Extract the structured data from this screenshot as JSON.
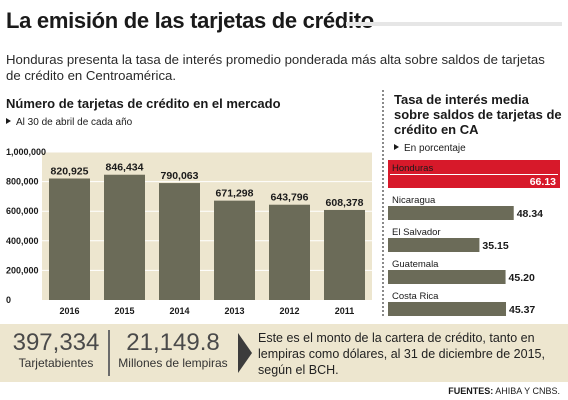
{
  "header": {
    "title": "La emisión de las tarjetas de crédito",
    "intro": "Honduras presenta la tasa de interés promedio ponderada más alta sobre saldos de tarjetas de crédito en Centroamérica."
  },
  "colors": {
    "bar": "#6b6b58",
    "highlight": "#d7192a",
    "panel_bg": "#ede6cf",
    "grid": "#ffffff"
  },
  "chart_data": [
    {
      "type": "bar",
      "title": "Número de tarjetas de crédito en el mercado",
      "subtitle": "Al 30 de abril de cada año",
      "categories": [
        "2016",
        "2015",
        "2014",
        "2013",
        "2012",
        "2011"
      ],
      "values": [
        820925,
        846434,
        790063,
        671298,
        643796,
        608378
      ],
      "value_labels": [
        "820,925",
        "846,434",
        "790,063",
        "671,298",
        "643,796",
        "608,378"
      ],
      "yticks": [
        0,
        200000,
        400000,
        600000,
        800000,
        1000000
      ],
      "ytick_labels": [
        "0",
        "200,000",
        "400,000",
        "600,000",
        "800,000",
        "1,000,000"
      ],
      "ylim": [
        0,
        1000000
      ],
      "grid": true
    },
    {
      "type": "bar",
      "orientation": "horizontal",
      "title": "Tasa de interés media sobre saldos de tarjetas de crédito en CA",
      "subtitle": "En porcentaje",
      "categories": [
        "Honduras",
        "Nicaragua",
        "El Salvador",
        "Guatemala",
        "Costa Rica"
      ],
      "values": [
        66.13,
        48.34,
        35.15,
        45.2,
        45.37
      ],
      "value_labels": [
        "66.13",
        "48.34",
        "35.15",
        "45.20",
        "45.37"
      ],
      "highlight": "Honduras",
      "xlim": [
        0,
        66.13
      ]
    }
  ],
  "footer": {
    "stats": [
      {
        "value": "397,334",
        "label": "Tarjetabientes"
      },
      {
        "value": "21,149.8",
        "label": "Millones de lempiras"
      }
    ],
    "note": "Este es el monto de la cartera de crédito, tanto en lempiras como dólares, al 31 de diciembre de 2015, según el BCH.",
    "source_label": "FUENTES:",
    "source_text": "AHIBA Y CNBS."
  }
}
